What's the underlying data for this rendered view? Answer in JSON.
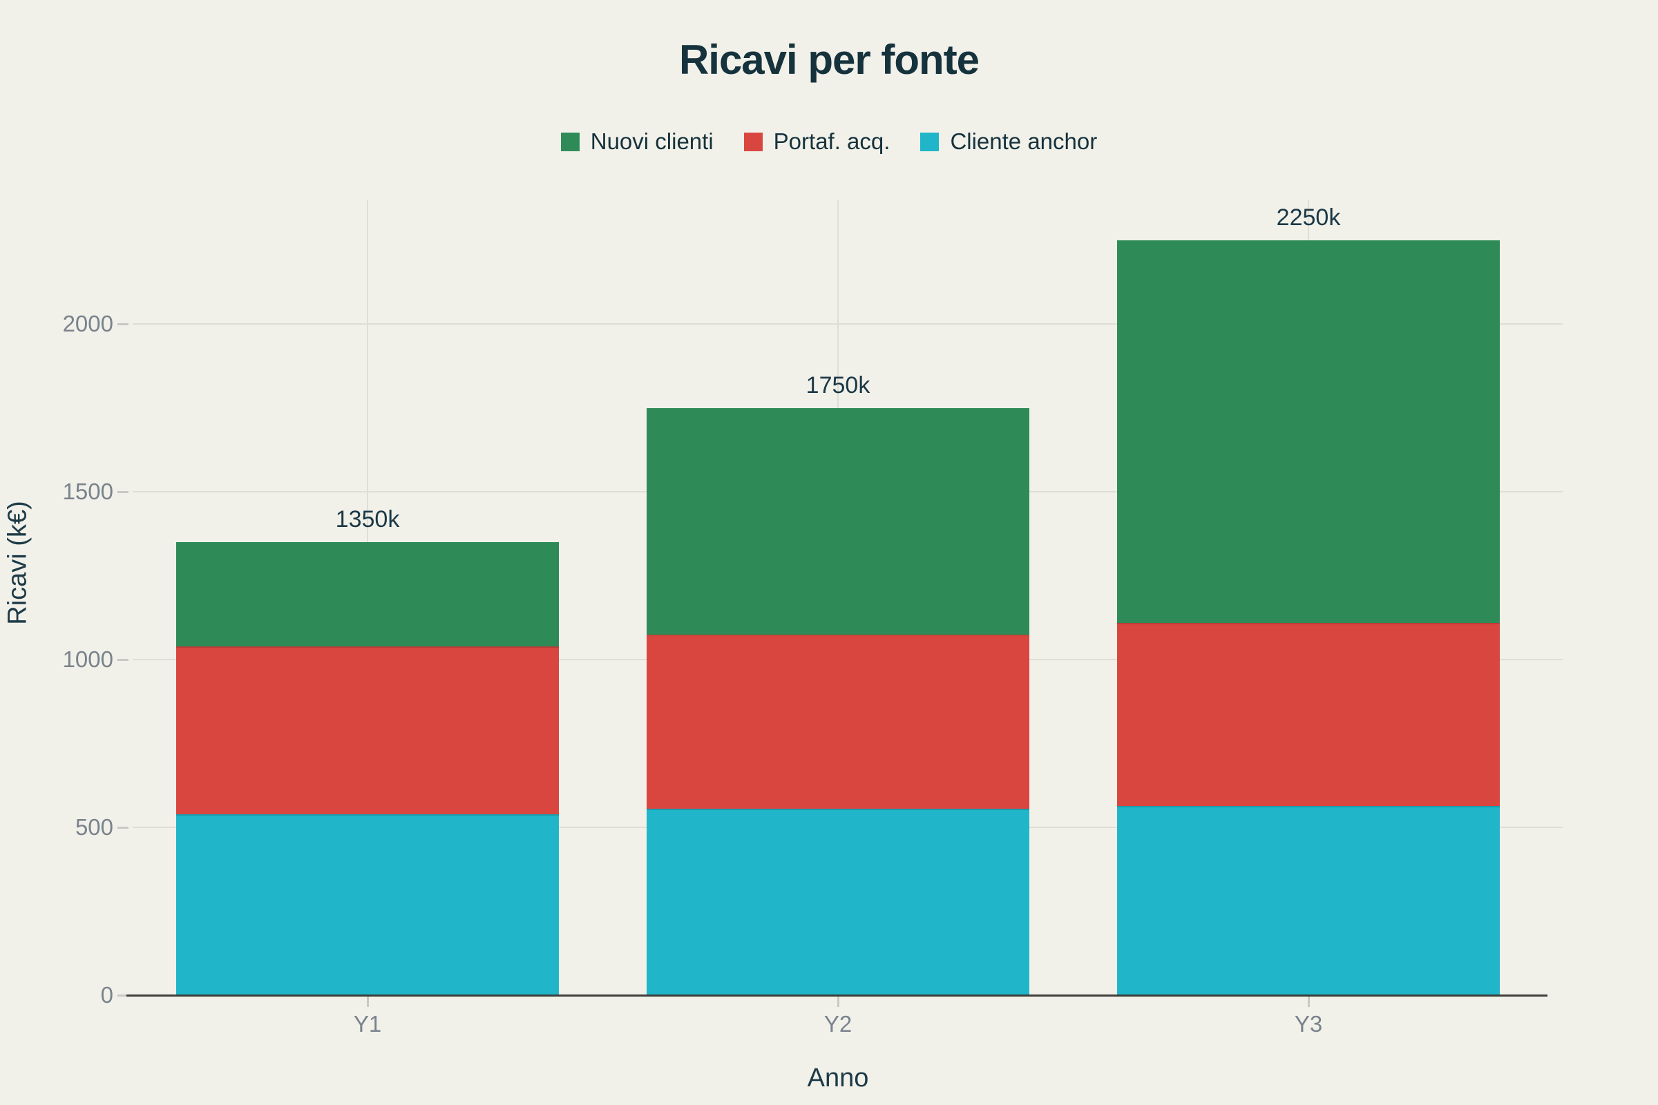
{
  "title": "Ricavi per fonte",
  "legend": {
    "items": [
      {
        "label": "Nuovi clienti",
        "color": "#2E8B57"
      },
      {
        "label": "Portaf. acq.",
        "color": "#D9463F"
      },
      {
        "label": "Cliente anchor",
        "color": "#20B5C9"
      }
    ]
  },
  "chart_data": {
    "type": "bar",
    "stacked": true,
    "title": "Ricavi per fonte",
    "xlabel": "Anno",
    "ylabel": "Ricavi (k€)",
    "categories": [
      "Y1",
      "Y2",
      "Y3"
    ],
    "series": [
      {
        "name": "Cliente anchor",
        "color": "#20B5C9",
        "values": [
          540,
          555,
          565
        ]
      },
      {
        "name": "Portaf. acq.",
        "color": "#D9463F",
        "values": [
          500,
          520,
          545
        ]
      },
      {
        "name": "Nuovi clienti",
        "color": "#2E8B57",
        "values": [
          310,
          675,
          1140
        ]
      }
    ],
    "stack_order_bottom_to_top": [
      "Cliente anchor",
      "Portaf. acq.",
      "Nuovi clienti"
    ],
    "totals": [
      1350,
      1750,
      2250
    ],
    "total_labels": [
      "1350k",
      "1750k",
      "2250k"
    ],
    "yticks": [
      0,
      500,
      1000,
      1500,
      2000
    ],
    "ylim": [
      0,
      2370
    ],
    "grid": true,
    "legend_position": "top"
  },
  "colors": {
    "background": "#F1F1EA",
    "title_text": "#16323C",
    "axis_title_text": "#1D3A47",
    "tick_text": "#7A838C",
    "total_label_text": "#1B3845",
    "gridline": "#DEDED6",
    "tick_mark": "#C9C9C1",
    "baseline": "#3E3D3A"
  }
}
